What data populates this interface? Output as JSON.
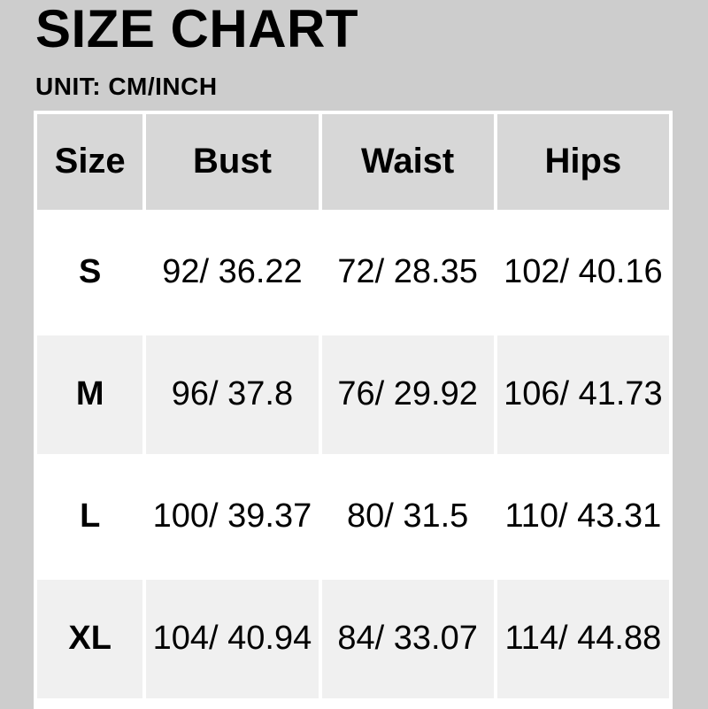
{
  "page": {
    "title": "SIZE CHART",
    "unit_label": "UNIT: CM/INCH"
  },
  "chart_data": {
    "type": "table",
    "title": "SIZE CHART",
    "unit": "CM/INCH",
    "columns": [
      "Size",
      "Bust",
      "Waist",
      "Hips"
    ],
    "rows": [
      [
        "S",
        "92/ 36.22",
        "72/ 28.35",
        "102/ 40.16"
      ],
      [
        "M",
        "96/ 37.8",
        "76/ 29.92",
        "106/ 41.73"
      ],
      [
        "L",
        "100/ 39.37",
        "80/ 31.5",
        "110/ 43.31"
      ],
      [
        "XL",
        "104/ 40.94",
        "84/ 33.07",
        "114/ 44.88"
      ]
    ],
    "layout": {
      "legend": "none",
      "grid": "white 4px separators",
      "row_striping": [
        "white",
        "light-gray",
        "white",
        "light-gray"
      ]
    },
    "colors": {
      "page_bg": "#cdcdcd",
      "header_bg": "#d7d7d7",
      "row_bg": "#ffffff",
      "row_alt_bg": "#f0f0f0",
      "grid": "#ffffff",
      "text": "#000000"
    }
  }
}
